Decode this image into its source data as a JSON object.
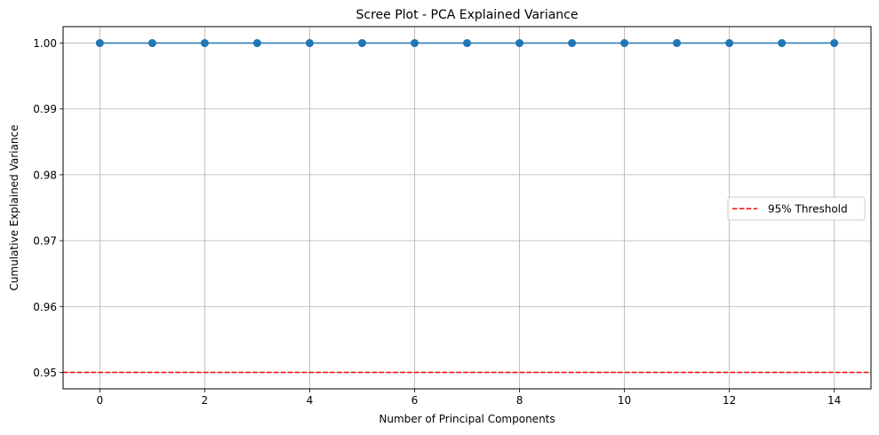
{
  "chart_data": {
    "type": "line",
    "title": "Scree Plot - PCA Explained Variance",
    "xlabel": "Number of Principal Components",
    "ylabel": "Cumulative Explained Variance",
    "xlim": [
      -0.7,
      14.7
    ],
    "ylim": [
      0.9475,
      1.0025
    ],
    "x_ticks": [
      0,
      2,
      4,
      6,
      8,
      10,
      12,
      14
    ],
    "y_ticks": [
      0.95,
      0.96,
      0.97,
      0.98,
      0.99,
      1.0
    ],
    "y_tick_labels": [
      "0.95",
      "0.96",
      "0.97",
      "0.98",
      "0.99",
      "1.00"
    ],
    "grid": true,
    "series": [
      {
        "x": [
          0,
          1,
          2,
          3,
          4,
          5,
          6,
          7,
          8,
          9,
          10,
          11,
          12,
          13,
          14
        ],
        "values": [
          1.0,
          1.0,
          1.0,
          1.0,
          1.0,
          1.0,
          1.0,
          1.0,
          1.0,
          1.0,
          1.0,
          1.0,
          1.0,
          1.0,
          1.0
        ],
        "color": "#1f77b4",
        "marker": "circle"
      }
    ],
    "threshold": {
      "value": 0.95,
      "label": "95% Threshold",
      "color": "#ff0000",
      "style": "dashed"
    },
    "legend": {
      "placement": "center-right",
      "entries": [
        "95% Threshold"
      ]
    }
  }
}
